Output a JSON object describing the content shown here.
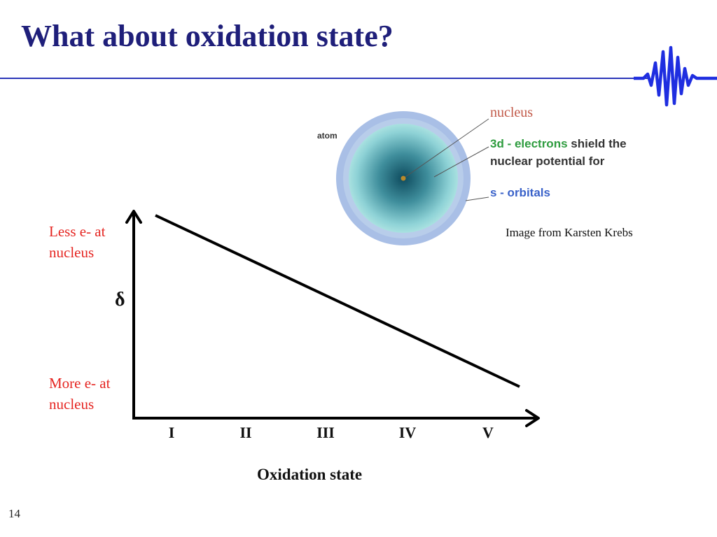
{
  "slide": {
    "title": "What about oxidation state?",
    "page_number": "14"
  },
  "atom_figure": {
    "atom_label": "atom",
    "nucleus_label": "nucleus",
    "shield_line1_green": "3d - electrons",
    "shield_line1_rest": "shield the",
    "shield_line2": "nuclear potential for",
    "s_orbitals_label": "s - orbitals",
    "credit": "Image from Karsten Krebs",
    "colors": {
      "nucleus_label": "#c25a49",
      "electrons": "#2e9c3f",
      "orbitals": "#3a62c9"
    }
  },
  "plot": {
    "y_axis_symbol": "δ",
    "y_top_label": "Less e- at nucleus",
    "y_bottom_label": "More e- at nucleus",
    "x_ticks": [
      "I",
      "II",
      "III",
      "IV",
      "V"
    ],
    "x_axis_title": "Oxidation state",
    "label_color": "#e52521"
  }
}
